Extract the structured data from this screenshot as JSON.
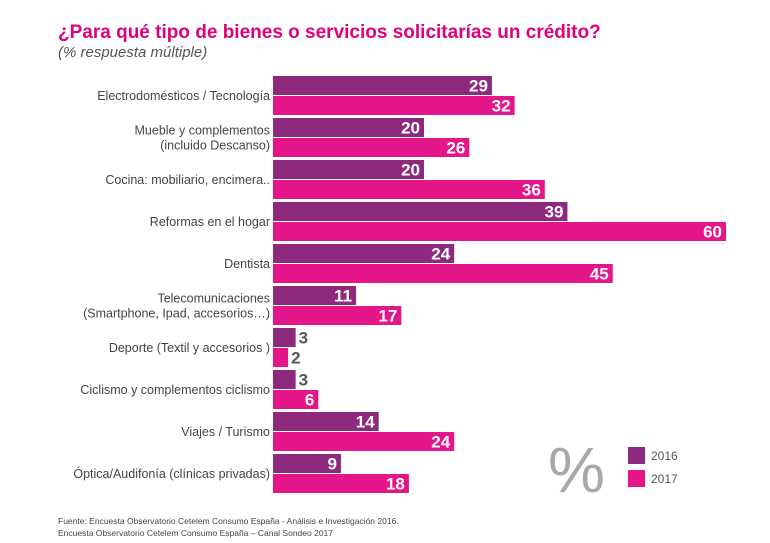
{
  "title": "¿Para qué tipo de bienes o servicios solicitarías un crédito?",
  "subtitle": "(% respuesta múltiple)",
  "unit_symbol": "%",
  "footnote_lines": [
    "Fuente: Encuesta Observatorio Cetelem Consumo España - Análisis e Investigación 2016.",
    "Encuesta Observatorio Cetelem Consumo España – Canal Sondeo 2017"
  ],
  "colors": {
    "series_2016": "#8e2a7e",
    "series_2017": "#e5168a",
    "title": "#e0007a",
    "value_label_inside": "#ffffff",
    "value_label_outside": "#555555"
  },
  "chart_data": {
    "type": "bar",
    "orientation": "horizontal",
    "categories": [
      [
        "Electrodomésticos / Tecnología"
      ],
      [
        "Mueble  y complementos",
        "(incluido Descanso)"
      ],
      [
        "Cocina: mobiliario, encimera.."
      ],
      [
        "Reformas en el hogar"
      ],
      [
        "Dentista"
      ],
      [
        "Telecomunicaciones",
        "(Smartphone, Ipad, accesorios…)"
      ],
      [
        "Deporte (Textil y accesorios )"
      ],
      [
        "Ciclismo y complementos ciclismo"
      ],
      [
        "Viajes / Turismo"
      ],
      [
        "Óptica/Audifonía (clínicas privadas)"
      ]
    ],
    "series": [
      {
        "name": "2016",
        "values": [
          29,
          20,
          20,
          39,
          24,
          11,
          3,
          3,
          14,
          9
        ]
      },
      {
        "name": "2017",
        "values": [
          32,
          26,
          36,
          60,
          45,
          17,
          2,
          6,
          24,
          18
        ]
      }
    ],
    "xlim": [
      0,
      60
    ],
    "grid": false,
    "legend_position": "bottom-right",
    "data_labels": true
  }
}
